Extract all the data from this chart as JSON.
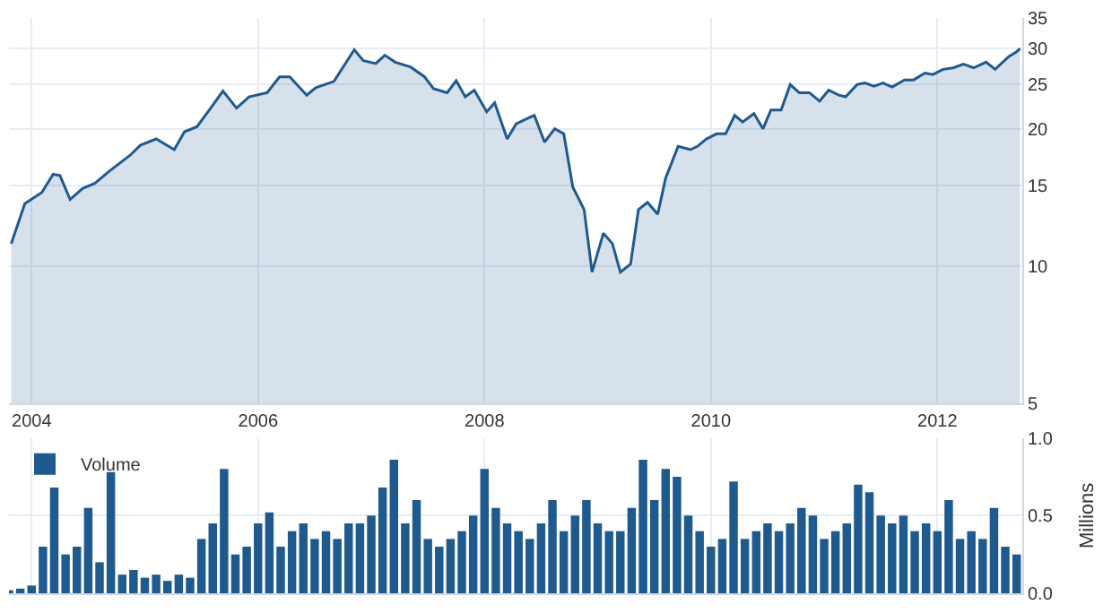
{
  "chart_data": [
    {
      "type": "area",
      "log": "y",
      "grid": true,
      "legend": false,
      "marker": "none",
      "line_style": "solid",
      "xlim": [
        2003.8,
        2012.75
      ],
      "xticks": [
        2004,
        2006,
        2008,
        2010,
        2012
      ],
      "ylim": [
        5,
        35
      ],
      "yticks": [
        5,
        10,
        15,
        20,
        25,
        30,
        35
      ],
      "series": [
        {
          "color": "#1f5a8f",
          "x": [
            2003.82,
            2003.94,
            2004.09,
            2004.19,
            2004.25,
            2004.34,
            2004.45,
            2004.56,
            2004.68,
            2004.87,
            2004.96,
            2005.1,
            2005.26,
            2005.35,
            2005.46,
            2005.57,
            2005.69,
            2005.81,
            2005.92,
            2006.08,
            2006.19,
            2006.28,
            2006.43,
            2006.51,
            2006.67,
            2006.85,
            2006.93,
            2007.04,
            2007.12,
            2007.21,
            2007.35,
            2007.47,
            2007.55,
            2007.67,
            2007.75,
            2007.83,
            2007.91,
            2008.02,
            2008.09,
            2008.2,
            2008.28,
            2008.4,
            2008.44,
            2008.53,
            2008.62,
            2008.7,
            2008.78,
            2008.88,
            2008.95,
            2009.05,
            2009.13,
            2009.2,
            2009.29,
            2009.36,
            2009.44,
            2009.53,
            2009.6,
            2009.71,
            2009.82,
            2009.88,
            2009.96,
            2010.05,
            2010.13,
            2010.21,
            2010.28,
            2010.38,
            2010.46,
            2010.53,
            2010.62,
            2010.7,
            2010.78,
            2010.87,
            2010.96,
            2011.04,
            2011.13,
            2011.19,
            2011.29,
            2011.36,
            2011.44,
            2011.52,
            2011.6,
            2011.71,
            2011.79,
            2011.89,
            2011.96,
            2012.05,
            2012.14,
            2012.23,
            2012.32,
            2012.43,
            2012.51,
            2012.63,
            2012.7,
            2012.73
          ],
          "values": [
            11.2,
            13.7,
            14.5,
            15.9,
            15.8,
            14,
            14.8,
            15.2,
            16.1,
            17.5,
            18.4,
            19,
            18,
            19.7,
            20.2,
            22,
            24.2,
            22.2,
            23.5,
            24,
            26,
            26,
            23.7,
            24.6,
            25.4,
            29.8,
            28.2,
            27.8,
            29,
            28,
            27.3,
            26,
            24.5,
            24,
            25.5,
            23.5,
            24.3,
            21.8,
            22.8,
            19,
            20.5,
            21.2,
            21.4,
            18.7,
            20,
            19.5,
            14.9,
            13.3,
            9.7,
            11.8,
            11.2,
            9.7,
            10.1,
            13.3,
            13.8,
            13,
            15.6,
            18.3,
            18,
            18.3,
            19,
            19.5,
            19.5,
            21.4,
            20.7,
            21.6,
            20,
            22,
            22,
            25,
            24,
            24,
            23,
            24.3,
            23.7,
            23.5,
            25,
            25.2,
            24.8,
            25.2,
            24.7,
            25.6,
            25.6,
            26.5,
            26.3,
            27,
            27.2,
            27.7,
            27.2,
            28,
            27,
            28.8,
            29.5,
            30
          ]
        }
      ]
    },
    {
      "type": "bar",
      "grid": true,
      "legend": "top left",
      "tick_labels": "y",
      "xlim": [
        2003.8,
        2012.75
      ],
      "xticks": [
        2004,
        2006,
        2008,
        2010,
        2012
      ],
      "ylim": [
        0,
        1
      ],
      "yticks": [
        {
          "value": 0,
          "label": "0.0"
        },
        {
          "value": 0.5,
          "label": "0.5"
        },
        {
          "value": 1,
          "label": "1.0"
        }
      ],
      "ylabel": "Millions",
      "series": [
        {
          "name": "Volume",
          "color": "#1f5a8f",
          "x": [
            2003.8,
            2003.9,
            2004.0,
            2004.1,
            2004.2,
            2004.3,
            2004.4,
            2004.5,
            2004.6,
            2004.7,
            2004.8,
            2004.9,
            2005.0,
            2005.1,
            2005.2,
            2005.3,
            2005.4,
            2005.5,
            2005.6,
            2005.7,
            2005.8,
            2005.9,
            2006.0,
            2006.1,
            2006.2,
            2006.3,
            2006.4,
            2006.5,
            2006.6,
            2006.7,
            2006.8,
            2006.9,
            2007.0,
            2007.1,
            2007.2,
            2007.3,
            2007.4,
            2007.5,
            2007.6,
            2007.7,
            2007.8,
            2007.9,
            2008.0,
            2008.1,
            2008.2,
            2008.3,
            2008.4,
            2008.5,
            2008.6,
            2008.7,
            2008.8,
            2008.9,
            2009.0,
            2009.1,
            2009.2,
            2009.3,
            2009.4,
            2009.5,
            2009.6,
            2009.7,
            2009.8,
            2009.9,
            2010.0,
            2010.1,
            2010.2,
            2010.3,
            2010.4,
            2010.5,
            2010.6,
            2010.7,
            2010.8,
            2010.9,
            2011.0,
            2011.1,
            2011.2,
            2011.3,
            2011.4,
            2011.5,
            2011.6,
            2011.7,
            2011.8,
            2011.9,
            2012.0,
            2012.1,
            2012.2,
            2012.3,
            2012.4,
            2012.5,
            2012.6,
            2012.7
          ],
          "values": [
            0.02,
            0.03,
            0.05,
            0.3,
            0.68,
            0.25,
            0.3,
            0.55,
            0.2,
            0.78,
            0.12,
            0.15,
            0.1,
            0.12,
            0.08,
            0.12,
            0.1,
            0.35,
            0.45,
            0.8,
            0.25,
            0.3,
            0.45,
            0.52,
            0.3,
            0.4,
            0.45,
            0.35,
            0.4,
            0.35,
            0.45,
            0.45,
            0.5,
            0.68,
            0.86,
            0.45,
            0.6,
            0.35,
            0.3,
            0.35,
            0.4,
            0.5,
            0.8,
            0.55,
            0.45,
            0.4,
            0.35,
            0.45,
            0.6,
            0.4,
            0.5,
            0.6,
            0.45,
            0.4,
            0.4,
            0.55,
            0.86,
            0.6,
            0.8,
            0.75,
            0.5,
            0.4,
            0.3,
            0.35,
            0.72,
            0.35,
            0.4,
            0.45,
            0.4,
            0.45,
            0.55,
            0.5,
            0.35,
            0.4,
            0.45,
            0.7,
            0.65,
            0.5,
            0.45,
            0.5,
            0.4,
            0.45,
            0.4,
            0.6,
            0.35,
            0.4,
            0.35,
            0.55,
            0.3,
            0.25
          ]
        }
      ]
    }
  ]
}
